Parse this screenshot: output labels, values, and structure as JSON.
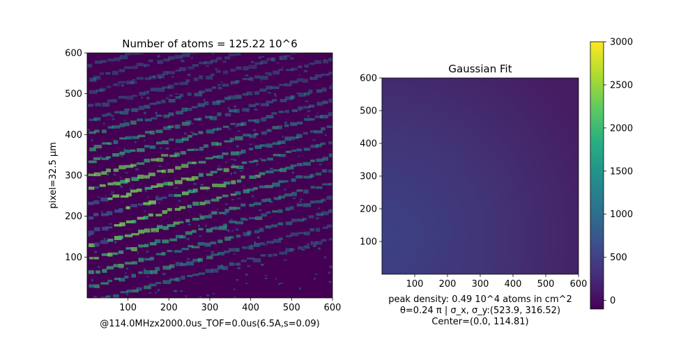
{
  "chart_data": [
    {
      "type": "heatmap",
      "title": "Number of atoms = 125.22 10^6",
      "xlabel": "@114.0MHzx2000.0us_TOF=0.0us(6.5A,s=0.09)",
      "ylabel": "pixel=32.5 µm",
      "xlim": [
        0,
        600
      ],
      "ylim": [
        0,
        600
      ],
      "xticks": [
        100,
        200,
        300,
        400,
        500,
        600
      ],
      "yticks": [
        100,
        200,
        300,
        400,
        500,
        600
      ],
      "colormap": "viridis",
      "pattern": "tilted fringe stripes, brightest near lower-left (x 100-200, y 200-300), fading toward upper-right, speckle noise"
    },
    {
      "type": "heatmap",
      "title": "Gaussian Fit",
      "xlim": [
        0,
        600
      ],
      "ylim": [
        0,
        600
      ],
      "xticks": [
        100,
        200,
        300,
        400,
        500,
        600
      ],
      "yticks": [
        100,
        200,
        300,
        400,
        500,
        600
      ],
      "colormap": "viridis",
      "annotation": [
        "peak density: 0.49 10^4 atoms in cm^2",
        "θ=0.24 π | σ_x, σ_y:(523.9, 316.52)",
        "Center=(0.0, 114.81)"
      ],
      "fit": {
        "peak_density": 0.49,
        "theta_pi": 0.24,
        "sigma_x": 523.9,
        "sigma_y": 316.52,
        "center": [
          0.0,
          114.81
        ]
      }
    }
  ],
  "colorbar": {
    "range": [
      -100,
      3000
    ],
    "ticks": [
      0,
      500,
      1000,
      1500,
      2000,
      2500,
      3000
    ],
    "colormap": "viridis"
  },
  "colors": {
    "viridis_low": "#440154",
    "viridis_mid": "#21918c",
    "viridis_high": "#fde725"
  }
}
